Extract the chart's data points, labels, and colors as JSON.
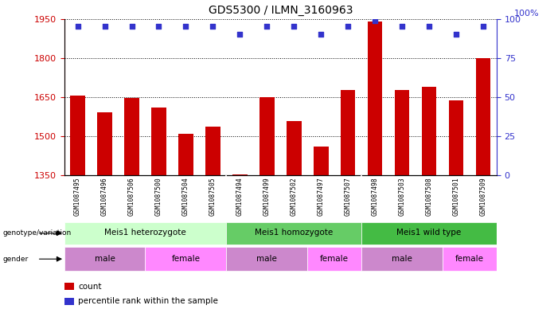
{
  "title": "GDS5300 / ILMN_3160963",
  "samples": [
    "GSM1087495",
    "GSM1087496",
    "GSM1087506",
    "GSM1087500",
    "GSM1087504",
    "GSM1087505",
    "GSM1087494",
    "GSM1087499",
    "GSM1087502",
    "GSM1087497",
    "GSM1087507",
    "GSM1087498",
    "GSM1087503",
    "GSM1087508",
    "GSM1087501",
    "GSM1087509"
  ],
  "counts": [
    1655,
    1590,
    1645,
    1610,
    1510,
    1535,
    1352,
    1650,
    1558,
    1460,
    1678,
    1940,
    1678,
    1690,
    1638,
    1800
  ],
  "percentiles": [
    95,
    95,
    95,
    95,
    95,
    95,
    90,
    95,
    95,
    90,
    95,
    99,
    95,
    95,
    90,
    95
  ],
  "ylim_left": [
    1350,
    1950
  ],
  "ylim_right": [
    0,
    100
  ],
  "yticks_left": [
    1350,
    1500,
    1650,
    1800,
    1950
  ],
  "yticks_right": [
    0,
    25,
    50,
    75,
    100
  ],
  "bar_color": "#cc0000",
  "dot_color": "#3333cc",
  "genotype_groups": [
    {
      "label": "Meis1 heterozygote",
      "start": 0,
      "end": 6,
      "color": "#ccffcc"
    },
    {
      "label": "Meis1 homozygote",
      "start": 6,
      "end": 11,
      "color": "#66cc66"
    },
    {
      "label": "Meis1 wild type",
      "start": 11,
      "end": 16,
      "color": "#44bb44"
    }
  ],
  "gender_groups": [
    {
      "label": "male",
      "start": 0,
      "end": 3,
      "color": "#cc88cc"
    },
    {
      "label": "female",
      "start": 3,
      "end": 6,
      "color": "#ff88ff"
    },
    {
      "label": "male",
      "start": 6,
      "end": 9,
      "color": "#cc88cc"
    },
    {
      "label": "female",
      "start": 9,
      "end": 11,
      "color": "#ff88ff"
    },
    {
      "label": "male",
      "start": 11,
      "end": 14,
      "color": "#cc88cc"
    },
    {
      "label": "female",
      "start": 14,
      "end": 16,
      "color": "#ff88ff"
    }
  ],
  "legend_items": [
    {
      "label": "count",
      "color": "#cc0000"
    },
    {
      "label": "percentile rank within the sample",
      "color": "#3333cc"
    }
  ],
  "background_color": "#ffffff",
  "tick_color_left": "#cc0000",
  "tick_color_right": "#3333cc",
  "label_bg_color": "#cccccc"
}
